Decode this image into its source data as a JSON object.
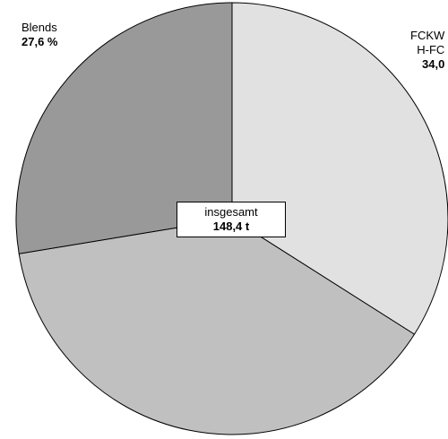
{
  "chart_data": {
    "type": "pie",
    "center_label": {
      "title": "insgesamt",
      "total": "148,4 t"
    },
    "slices": [
      {
        "label_lines": [
          "FCKW",
          "H-FC"
        ],
        "value_text": "34,0",
        "value": 34.0,
        "color": "#e1e1e1"
      },
      {
        "label_lines": [],
        "value_text": "",
        "value": 38.4,
        "color": "#c0c0c0"
      },
      {
        "label_lines": [
          "Blends"
        ],
        "value_text": "27,6 %",
        "value": 27.6,
        "color": "#999999"
      }
    ],
    "start_angle_deg": 0,
    "direction": "clockwise",
    "border_color": "#000000"
  }
}
